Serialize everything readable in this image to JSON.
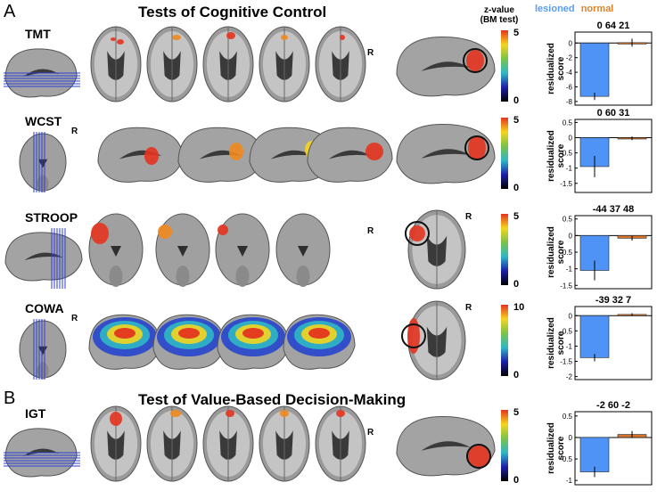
{
  "panel_a": {
    "letter": "A",
    "title": "Tests of Cognitive Control"
  },
  "panel_b": {
    "letter": "B",
    "title": "Test of Value-Based Decision-Making"
  },
  "colorbar_title_line1": "z-value",
  "colorbar_title_line2": "(BM test)",
  "legend": {
    "lesioned": "lesioned",
    "normal": "normal",
    "lesioned_color": "#5a9bf5",
    "normal_color": "#e0822e"
  },
  "orientation_label": "R",
  "colors": {
    "lesioned_bar": "#4f93f7",
    "normal_bar": "#d8742a",
    "brain_gray": "#a8a8a8",
    "lesion_blob": "#e4341f"
  },
  "rows": [
    {
      "test": "TMT",
      "coords": "0 64 21",
      "cbar_max": "5",
      "cbar_min": "0",
      "ylabel": "residualized\nscore",
      "yticks": [
        "0",
        "-2",
        "-4",
        "-6",
        "-8"
      ],
      "chart_data": {
        "type": "bar",
        "categories": [
          "lesioned",
          "normal"
        ],
        "values": [
          -7.3,
          0.05
        ],
        "errors": [
          0.5,
          0.55
        ],
        "ylim": [
          -8.5,
          1.5
        ],
        "yticks": [
          0,
          -2,
          -4,
          -6,
          -8
        ]
      }
    },
    {
      "test": "WCST",
      "coords": "0 60 31",
      "cbar_max": "5",
      "cbar_min": "0",
      "ylabel": "residualized\nscore",
      "yticks": [
        "0.5",
        "0",
        "-0.5",
        "-1",
        "-1.5"
      ],
      "chart_data": {
        "type": "bar",
        "categories": [
          "lesioned",
          "normal"
        ],
        "values": [
          -0.95,
          -0.02
        ],
        "errors": [
          0.35,
          0.06
        ],
        "ylim": [
          -1.8,
          0.6
        ],
        "yticks": [
          0.5,
          0,
          -0.5,
          -1,
          -1.5
        ]
      }
    },
    {
      "test": "STROOP",
      "coords": "-44 37 48",
      "cbar_max": "5",
      "cbar_min": "0",
      "ylabel": "residualized\nscore",
      "yticks": [
        "0.5",
        "0",
        "-0.5",
        "-1",
        "-1.5"
      ],
      "chart_data": {
        "type": "bar",
        "categories": [
          "lesioned",
          "normal"
        ],
        "values": [
          -1.05,
          -0.08
        ],
        "errors": [
          0.3,
          0.07
        ],
        "ylim": [
          -1.6,
          0.6
        ],
        "yticks": [
          0.5,
          0,
          -0.5,
          -1,
          -1.5
        ]
      }
    },
    {
      "test": "COWA",
      "coords": "-39 32 7",
      "cbar_max": "10",
      "cbar_min": "0",
      "ylabel": "residualized\nscore",
      "yticks": [
        "0",
        "-0.5",
        "-1",
        "-1.5",
        "-2"
      ],
      "chart_data": {
        "type": "bar",
        "categories": [
          "lesioned",
          "normal"
        ],
        "values": [
          -1.38,
          0.04
        ],
        "errors": [
          0.12,
          0.04
        ],
        "ylim": [
          -2.1,
          0.3
        ],
        "yticks": [
          0,
          -0.5,
          -1,
          -1.5,
          -2
        ]
      }
    },
    {
      "test": "IGT",
      "coords": "-2 60 -2",
      "cbar_max": "5",
      "cbar_min": "0",
      "ylabel": "residualized\nscore",
      "yticks": [
        "0.5",
        "0",
        "-0.5",
        "-1"
      ],
      "chart_data": {
        "type": "bar",
        "categories": [
          "lesioned",
          "normal"
        ],
        "values": [
          -0.8,
          0.07
        ],
        "errors": [
          0.12,
          0.08
        ],
        "ylim": [
          -1.1,
          0.6
        ],
        "yticks": [
          0.5,
          0,
          -0.5,
          -1
        ]
      }
    }
  ]
}
